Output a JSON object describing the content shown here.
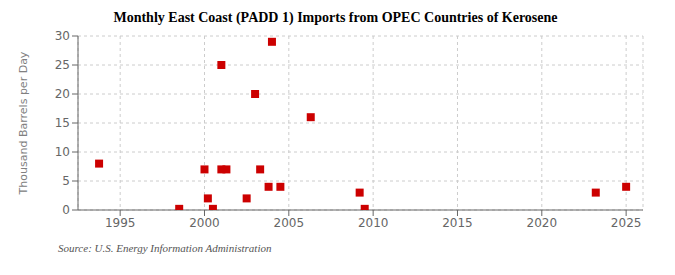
{
  "chart_data": {
    "type": "scatter",
    "title": "Monthly East Coast (PADD 1) Imports from OPEC Countries of Kerosene",
    "y_label": "Thousand Barrels per Day",
    "annotations": [
      "Source: U.S. Energy Information Administration"
    ],
    "x": [
      1993.75,
      1998.5,
      2000.0,
      2000.2,
      2000.5,
      2001.0,
      2001.3,
      2002.5,
      2003.0,
      2003.3,
      2003.8,
      2004.0,
      2004.5,
      2006.3,
      2009.2,
      2009.5,
      2001.0,
      2023.2,
      2025.0
    ],
    "values": [
      8.0,
      0.2,
      7.0,
      2.0,
      0.2,
      7.0,
      7.0,
      2.0,
      20.0,
      7.0,
      4.0,
      29.0,
      4.0,
      16.0,
      3.0,
      0.2,
      25.0,
      3.0,
      4.0
    ],
    "color": "#cc0000",
    "marker": "square",
    "xlim": [
      1992.5,
      2026
    ],
    "ylim": [
      0,
      30
    ],
    "xticks": [
      1995,
      2000,
      2005,
      2010,
      2015,
      2020,
      2025
    ],
    "yticks": [
      0,
      5,
      10,
      15,
      20,
      25,
      30
    ],
    "grid": true
  }
}
